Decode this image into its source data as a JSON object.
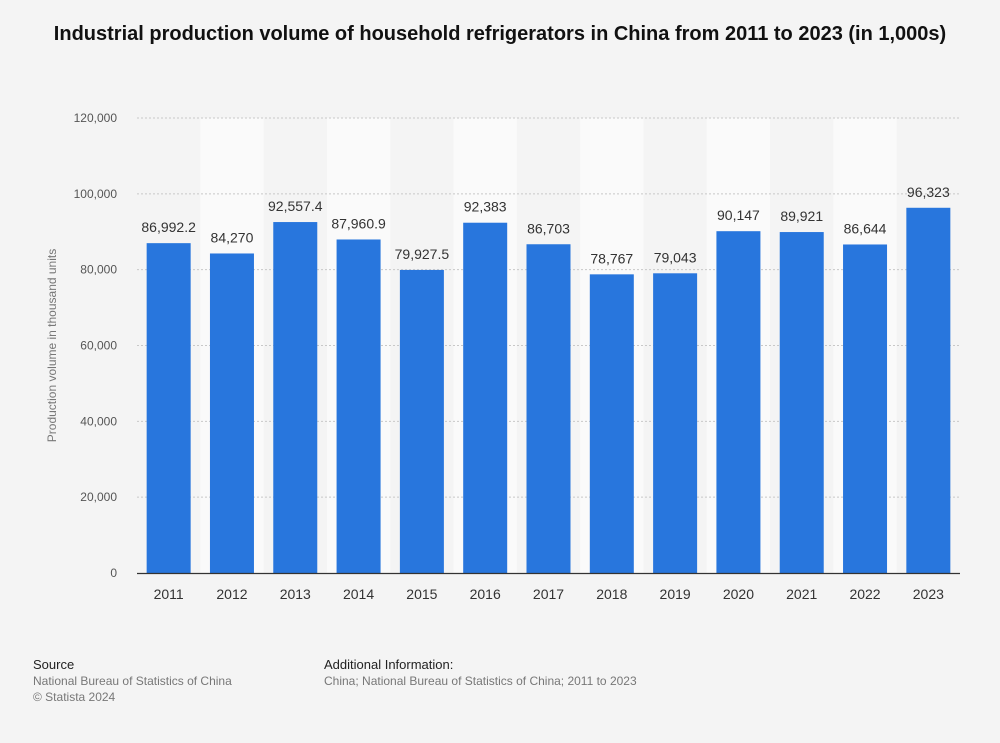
{
  "chart_data": {
    "type": "bar",
    "title": "Industrial production volume of household refrigerators in China from 2011 to 2023 (in 1,000s)",
    "xlabel": "",
    "ylabel": "Production volume in thousand units",
    "ylim": [
      0,
      120000
    ],
    "yticks": [
      0,
      20000,
      40000,
      60000,
      80000,
      100000,
      120000
    ],
    "ytick_labels": [
      "0",
      "20,000",
      "40,000",
      "60,000",
      "80,000",
      "100,000",
      "120,000"
    ],
    "grid": true,
    "categories": [
      "2011",
      "2012",
      "2013",
      "2014",
      "2015",
      "2016",
      "2017",
      "2018",
      "2019",
      "2020",
      "2021",
      "2022",
      "2023"
    ],
    "values": [
      86992.2,
      84270,
      92557.4,
      87960.9,
      79927.5,
      92383,
      86703,
      78767,
      79043,
      90147,
      89921,
      86644,
      96323
    ],
    "value_labels": [
      "86,992.2",
      "84,270",
      "92,557.4",
      "87,960.9",
      "79,927.5",
      "92,383",
      "86,703",
      "78,767",
      "79,043",
      "90,147",
      "89,921",
      "86,644",
      "96,323"
    ],
    "bar_color": "#2876dd"
  },
  "footer": {
    "source_heading": "Source",
    "source_lines": [
      "National Bureau of Statistics of China",
      "© Statista 2024"
    ],
    "info_heading": "Additional Information:",
    "info_lines": [
      "China; National Bureau of Statistics of China; 2011 to 2023"
    ]
  }
}
